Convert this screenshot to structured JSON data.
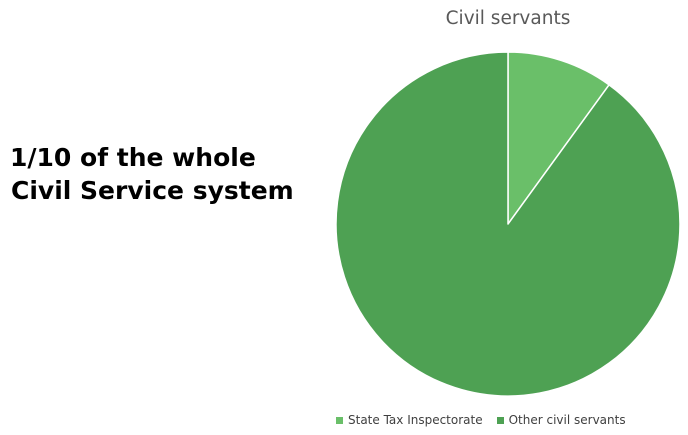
{
  "headline": {
    "line1": "1/10 of the whole",
    "line2": "Civil Service system"
  },
  "chart_data": {
    "type": "pie",
    "title": "Civil servants",
    "categories": [
      "State Tax Inspectorate",
      "Other civil servants"
    ],
    "values": [
      10,
      90
    ],
    "colors": [
      "#6abf69",
      "#4ea153"
    ],
    "slice_border_color": "#ffffff",
    "start_angle_deg": 0,
    "direction": "clockwise",
    "legend_position": "bottom"
  }
}
